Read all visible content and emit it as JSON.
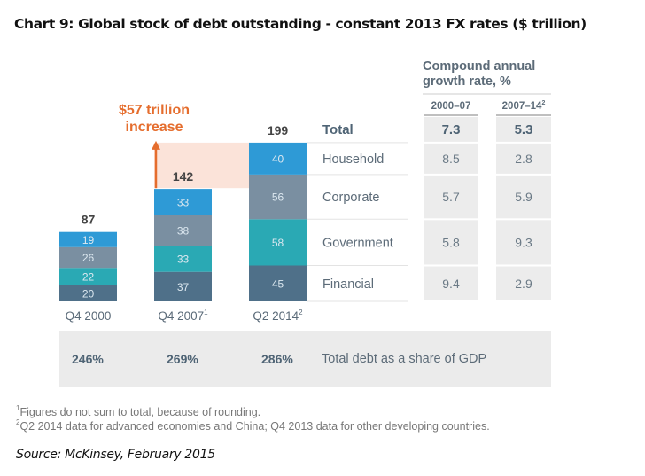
{
  "title": "Chart 9:  Global stock of debt outstanding - constant 2013 FX rates ($ trillion)",
  "colors": {
    "Household": "#2e9ad6",
    "Corporate": "#7a8fa1",
    "Government": "#2aa9b4",
    "Financial": "#4f7089",
    "increase_band": "#fbe3d9",
    "increase_arrow": "#e56d2d",
    "table_cell": "#ececec",
    "gdp_band": "#ebebeb"
  },
  "chart_data": {
    "type": "bar",
    "stacked": true,
    "title": "Global stock of debt outstanding - constant 2013 FX rates ($ trillion)",
    "categories": [
      "Q4 2000",
      "Q4 2007",
      "Q2 2014"
    ],
    "category_superscripts": [
      "",
      "1",
      "2"
    ],
    "series": [
      {
        "name": "Financial",
        "values": [
          20,
          37,
          45
        ]
      },
      {
        "name": "Government",
        "values": [
          22,
          33,
          58
        ]
      },
      {
        "name": "Corporate",
        "values": [
          26,
          38,
          56
        ]
      },
      {
        "name": "Household",
        "values": [
          19,
          33,
          40
        ]
      }
    ],
    "totals": [
      87,
      142,
      199
    ],
    "annotation": {
      "line1": "$57 trillion",
      "line2": "increase",
      "from": "Q4 2007",
      "to": "Q2 2014"
    },
    "ylim": [
      0,
      199
    ],
    "xlabel": "",
    "ylabel": "",
    "grid": false,
    "gdp_share": {
      "label": "Total debt as a share of GDP",
      "values": [
        "246%",
        "269%",
        "286%"
      ]
    },
    "growth_table": {
      "header_line1": "Compound annual",
      "header_line2": "growth rate, %",
      "columns": [
        {
          "label": "2000–07",
          "sup": ""
        },
        {
          "label": "2007–14",
          "sup": "2"
        }
      ],
      "rows": [
        {
          "label": "Total",
          "values": [
            "7.3",
            "5.3"
          ],
          "bold": true
        },
        {
          "label": "Household",
          "values": [
            "8.5",
            "2.8"
          ]
        },
        {
          "label": "Corporate",
          "values": [
            "5.7",
            "5.9"
          ]
        },
        {
          "label": "Government",
          "values": [
            "5.8",
            "9.3"
          ]
        },
        {
          "label": "Financial",
          "values": [
            "9.4",
            "2.9"
          ]
        }
      ]
    }
  },
  "footnotes": [
    {
      "mark": "1",
      "text": "Figures do not sum to total, because of rounding."
    },
    {
      "mark": "2",
      "text": "Q2 2014 data for advanced economies and China; Q4 2013 data for other developing countries."
    }
  ],
  "source": "Source: McKinsey, February 2015"
}
